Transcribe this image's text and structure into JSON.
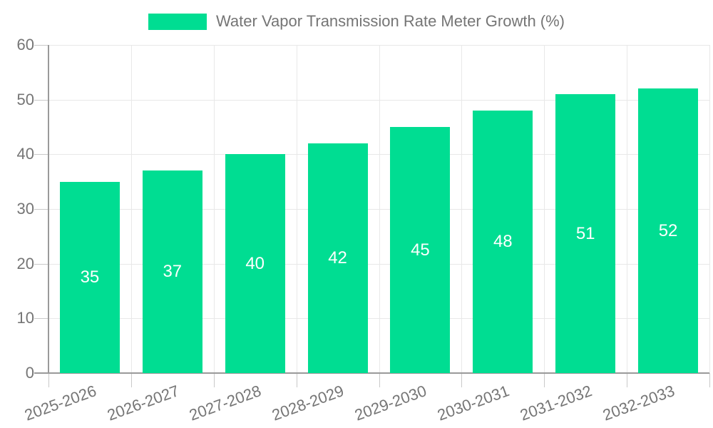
{
  "chart_data": {
    "type": "bar",
    "legend": "Water Vapor Transmission Rate Meter Growth (%)",
    "categories": [
      "2025-2026",
      "2026-2027",
      "2027-2028",
      "2028-2029",
      "2029-2030",
      "2030-2031",
      "2031-2032",
      "2032-2033"
    ],
    "values": [
      35,
      37,
      40,
      42,
      45,
      48,
      51,
      52
    ],
    "value_labels": [
      "35",
      "37",
      "40",
      "42",
      "45",
      "48",
      "51",
      "52"
    ],
    "ylim": [
      0,
      60
    ],
    "yticks": [
      0,
      10,
      20,
      30,
      40,
      50,
      60
    ],
    "xlabel": "",
    "ylabel": "",
    "grid": "on",
    "legend_position": "top-center"
  },
  "colors": {
    "bar": "#00DD92",
    "value_label": "#ffffff",
    "axis_text": "#757575",
    "axis_line": "#9a9a9a",
    "tick": "#c9c9c9",
    "gridline": "#e8e8e8",
    "background": "#ffffff"
  }
}
